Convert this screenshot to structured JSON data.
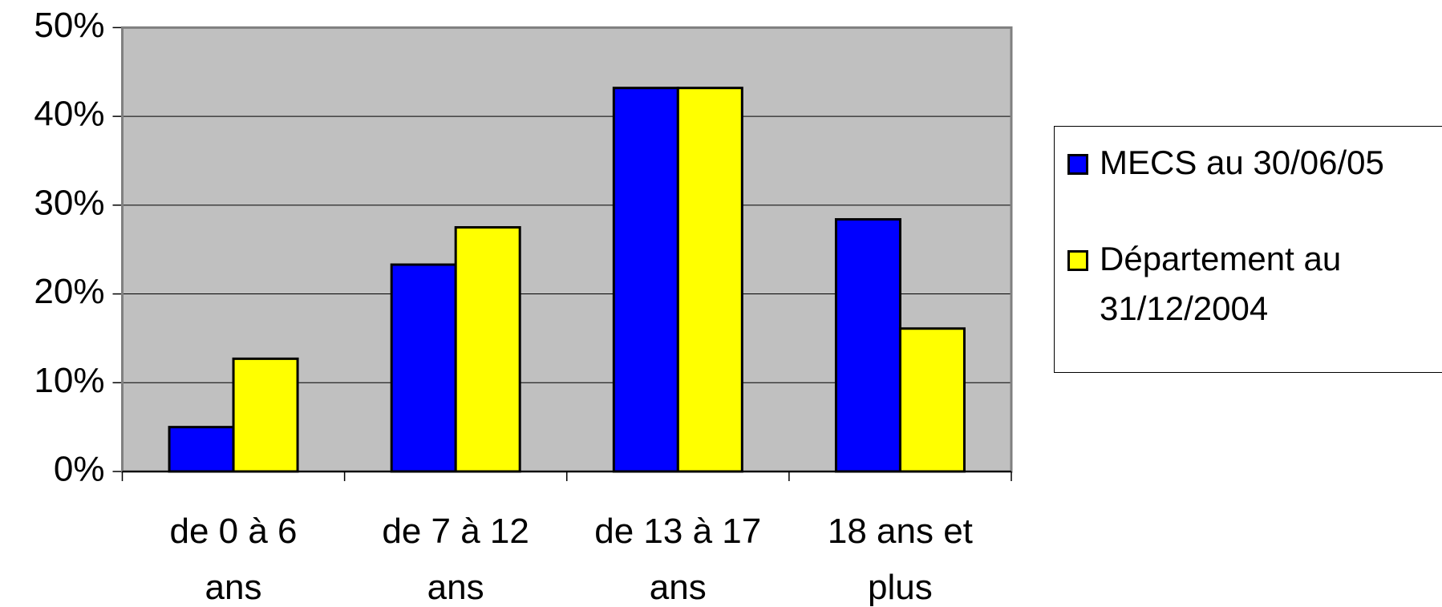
{
  "chart_data": {
    "type": "bar",
    "categories": [
      [
        "de 0 à 6",
        "ans"
      ],
      [
        "de 7 à 12",
        "ans"
      ],
      [
        "de 13 à 17",
        "ans"
      ],
      [
        "18 ans et",
        "plus"
      ]
    ],
    "series": [
      {
        "name": "MECS au 30/06/05",
        "color": "#0000ff",
        "values": [
          5,
          23.3,
          43.2,
          28.4
        ]
      },
      {
        "name": "Département au 31/12/2004",
        "color": "#ffff00",
        "values": [
          12.7,
          27.5,
          43.2,
          16.1
        ]
      }
    ],
    "ylim": [
      0,
      50
    ],
    "yticks": [
      {
        "value": 0,
        "label": "0%"
      },
      {
        "value": 10,
        "label": "10%"
      },
      {
        "value": 20,
        "label": "20%"
      },
      {
        "value": 30,
        "label": "30%"
      },
      {
        "value": 40,
        "label": "40%"
      },
      {
        "value": 50,
        "label": "50%"
      }
    ],
    "grid": true,
    "plot_background": "#c0c0c0",
    "legend": "right"
  }
}
